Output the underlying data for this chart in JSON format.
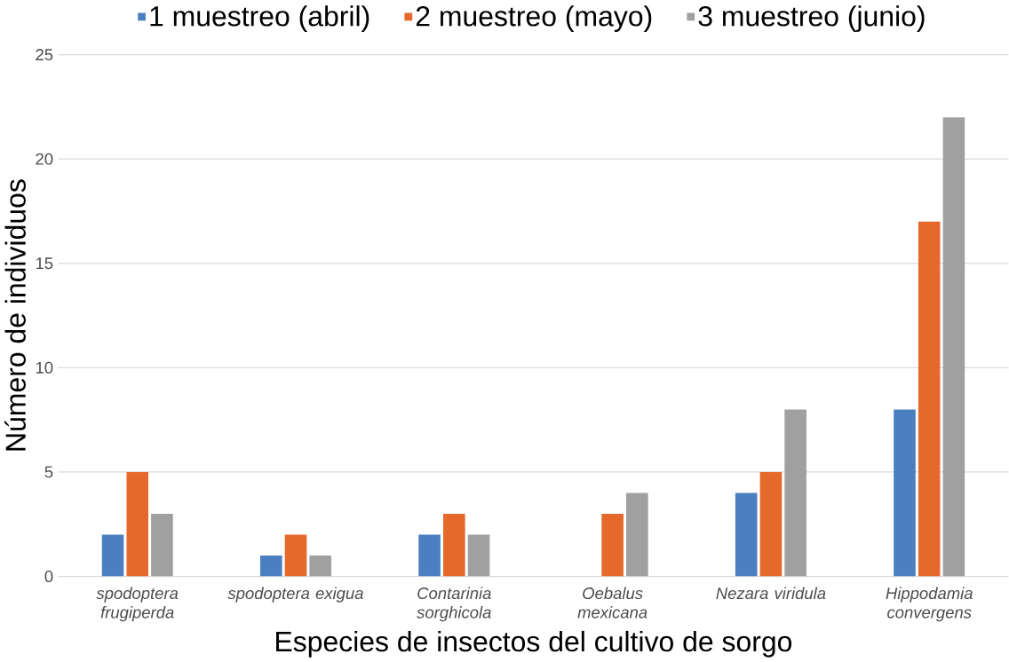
{
  "chart_data": {
    "type": "bar",
    "xlabel": "Especies de insectos del cultivo de sorgo",
    "ylabel": "Número de individuos",
    "categories": [
      "spodoptera frugiperda",
      "spodoptera exigua",
      "Contarinia sorghicola",
      "Oebalus mexicana",
      "Nezara viridula",
      "Hippodamia convergens"
    ],
    "series": [
      {
        "name": "1 muestreo (abril)",
        "color": "#4a7fc1",
        "values": [
          2,
          1,
          2,
          0,
          4,
          8
        ]
      },
      {
        "name": "2 muestreo (mayo)",
        "color": "#e5692a",
        "values": [
          5,
          2,
          3,
          3,
          5,
          17
        ]
      },
      {
        "name": "3 muestreo (junio)",
        "color": "#a0a0a0",
        "values": [
          3,
          1,
          2,
          4,
          8,
          22
        ]
      }
    ],
    "ylim": [
      0,
      25
    ],
    "yticks": [
      0,
      5,
      10,
      15,
      20,
      25
    ],
    "grid": "y",
    "legend": "top"
  }
}
